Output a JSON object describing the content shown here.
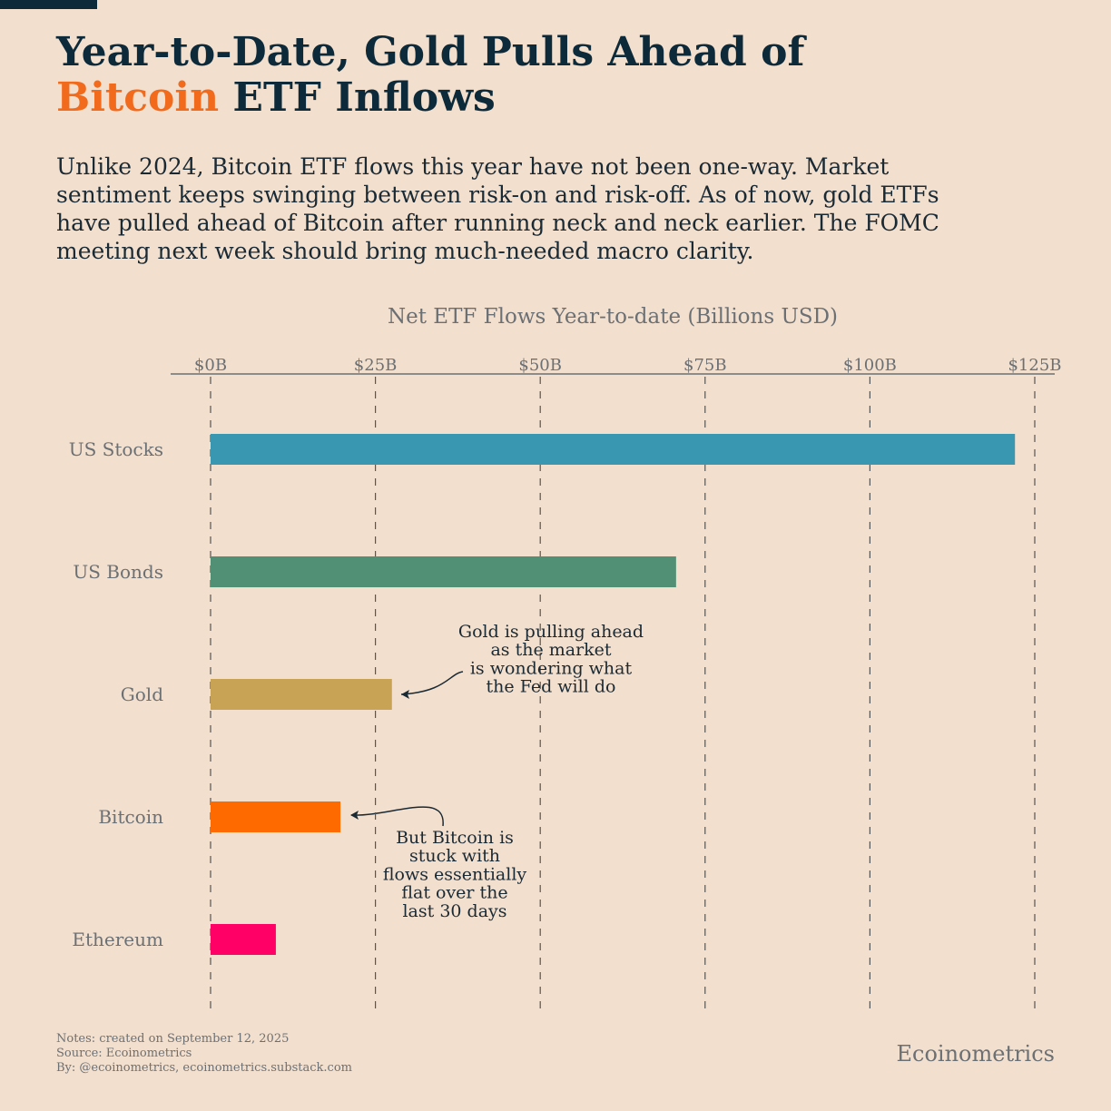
{
  "chart_data": {
    "type": "hbar",
    "title": [
      "Year-to-Date, Gold Pulls Ahead of",
      "Bitcoin",
      "ETF Inflows"
    ],
    "title_highlight_color": "#f26b1d",
    "subtitle": [
      "Unlike 2024, Bitcoin ETF flows this year have not been one-way. Market",
      "sentiment keeps swinging between risk-on and risk-off. As of now, gold ETFs",
      "have pulled ahead of Bitcoin after running neck and neck earlier. The FOMC",
      "meeting next week should bring much-needed macro clarity."
    ],
    "xlabel": "Net ETF Flows Year-to-date (Billions USD)",
    "categories": [
      "US Stocks",
      "US Bonds",
      "Gold",
      "Bitcoin",
      "Ethereum"
    ],
    "values": [
      122.0,
      70.6,
      27.5,
      19.7,
      9.9
    ],
    "colors": [
      "#3a97b2",
      "#519074",
      "#c8a255",
      "#ff6a00",
      "#ff0066"
    ],
    "xlim": [
      0,
      125
    ],
    "xticks": [
      {
        "value": 0,
        "label": "$0B"
      },
      {
        "value": 25,
        "label": "$25B"
      },
      {
        "value": 50,
        "label": "$50B"
      },
      {
        "value": 75,
        "label": "$75B"
      },
      {
        "value": 100,
        "label": "$100B"
      },
      {
        "value": 125,
        "label": "$125B"
      }
    ],
    "grid": true,
    "annotations": [
      [
        "Gold is pulling ahead",
        "as the market",
        "is wondering what",
        "the Fed will do"
      ],
      [
        "But Bitcoin is",
        "stuck with",
        "flows essentially",
        "flat over the",
        "last 30 days"
      ]
    ],
    "notes": [
      "Notes: created on September 12, 2025",
      "Source: Ecoinometrics",
      "By: @ecoinometrics, ecoinometrics.substack.com"
    ],
    "brand": "Ecoinometrics"
  }
}
